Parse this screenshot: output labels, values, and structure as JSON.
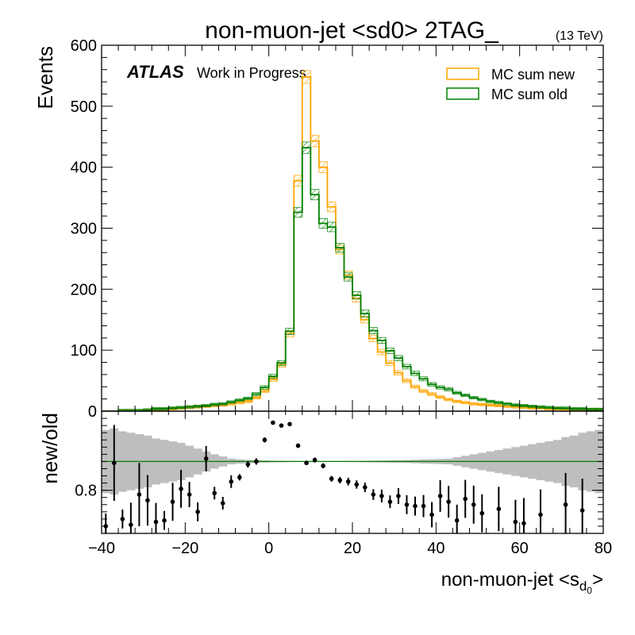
{
  "chart_data": [
    {
      "type": "histogram-step",
      "title": "non-muon-jet <sd0> 2TAG_",
      "energy_label": "(13 TeV)",
      "atlas_label": "ATLAS",
      "atlas_sublabel": "Work in Progress",
      "ylabel": "Events",
      "xlim": [
        -40,
        80
      ],
      "ylim": [
        0,
        600
      ],
      "y_ticks": [
        "0",
        "100",
        "200",
        "300",
        "400",
        "500",
        "600"
      ],
      "bin_width": 2,
      "legend_position": "top-right",
      "colors": {
        "new": "#FFA500",
        "old": "#008000"
      },
      "series": [
        {
          "name": "MC sum new",
          "bin_edges_start": -40,
          "values": [
            0,
            0,
            1,
            1,
            1,
            2,
            3,
            3,
            4,
            5,
            6,
            7,
            8,
            9,
            10,
            12,
            14,
            16,
            22,
            33,
            52,
            76,
            127,
            378,
            548,
            443,
            400,
            335,
            265,
            223,
            185,
            150,
            119,
            97,
            79,
            63,
            50,
            40,
            33,
            28,
            23,
            19,
            16,
            14,
            12,
            11,
            10,
            9,
            8,
            7,
            6,
            5,
            5,
            4,
            4,
            3,
            3,
            2,
            2,
            2
          ]
        },
        {
          "name": "MC sum old",
          "bin_edges_start": -40,
          "values": [
            0,
            0,
            1,
            1,
            1,
            2,
            4,
            4,
            5,
            6,
            7,
            8,
            9,
            11,
            12,
            15,
            18,
            21,
            28,
            39,
            57,
            79,
            131,
            326,
            432,
            355,
            308,
            302,
            268,
            220,
            190,
            160,
            132,
            116,
            99,
            87,
            73,
            62,
            53,
            44,
            39,
            36,
            30,
            26,
            22,
            19,
            16,
            14,
            12,
            10,
            9,
            8,
            7,
            6,
            5,
            5,
            4,
            4,
            3,
            3
          ]
        }
      ]
    },
    {
      "type": "ratio",
      "ylabel": "new/old",
      "xlabel": "non-muon-jet <s",
      "xlabel_subscript": "d",
      "xlabel_subsubscript": "0",
      "xlabel_suffix": ">",
      "xlim": [
        -40,
        80
      ],
      "x_ticks": [
        "-40",
        "-20",
        "0",
        "20",
        "40",
        "60",
        "80"
      ],
      "y_tick_labels": [
        "0.8"
      ],
      "reference_line": 1.0,
      "colors": {
        "points": "#000000",
        "band": "#BEBEBE",
        "reference": "#008000"
      },
      "band_halfwidth": [
        0.22,
        0.23,
        0.21,
        0.2,
        0.19,
        0.18,
        0.16,
        0.15,
        0.14,
        0.13,
        0.11,
        0.09,
        0.07,
        0.05,
        0.035,
        0.02,
        0.015,
        0.012,
        0.01,
        0.008,
        0.006,
        0.005,
        0.004,
        0.003,
        0.003,
        0.003,
        0.003,
        0.003,
        0.003,
        0.004,
        0.004,
        0.005,
        0.006,
        0.007,
        0.008,
        0.009,
        0.01,
        0.012,
        0.014,
        0.016,
        0.018,
        0.02,
        0.03,
        0.04,
        0.05,
        0.06,
        0.07,
        0.08,
        0.09,
        0.1,
        0.11,
        0.12,
        0.13,
        0.14,
        0.15,
        0.17,
        0.18,
        0.2,
        0.21,
        0.22
      ],
      "points": [
        {
          "x": -39,
          "y": 0.55,
          "err": 0.04
        },
        {
          "x": -37,
          "y": 0.99,
          "err": 0.12
        },
        {
          "x": -35,
          "y": 0.6,
          "err": 0.03
        },
        {
          "x": -33,
          "y": 0.56,
          "err": 0.07
        },
        {
          "x": -31,
          "y": 0.77,
          "err": 0.1
        },
        {
          "x": -29,
          "y": 0.73,
          "err": 0.08
        },
        {
          "x": -27,
          "y": 0.58,
          "err": 0.06
        },
        {
          "x": -25,
          "y": 0.59,
          "err": 0.03
        },
        {
          "x": -23,
          "y": 0.72,
          "err": 0.06
        },
        {
          "x": -21,
          "y": 0.81,
          "err": 0.06
        },
        {
          "x": -19,
          "y": 0.77,
          "err": 0.04
        },
        {
          "x": -17,
          "y": 0.65,
          "err": 0.03
        },
        {
          "x": -15,
          "y": 1.02,
          "err": 0.04
        },
        {
          "x": -13,
          "y": 0.78,
          "err": 0.02
        },
        {
          "x": -11,
          "y": 0.71,
          "err": 0.02
        },
        {
          "x": -9,
          "y": 0.86,
          "err": 0.02
        },
        {
          "x": -7,
          "y": 0.89,
          "err": 0.01
        },
        {
          "x": -5,
          "y": 0.98,
          "err": 0.01
        },
        {
          "x": -3,
          "y": 1.0,
          "err": 0.01
        },
        {
          "x": -1,
          "y": 1.15,
          "err": 0.008
        },
        {
          "x": 1,
          "y": 1.27,
          "err": 0.006
        },
        {
          "x": 3,
          "y": 1.25,
          "err": 0.006
        },
        {
          "x": 5,
          "y": 1.26,
          "err": 0.006
        },
        {
          "x": 7,
          "y": 1.11,
          "err": 0.007
        },
        {
          "x": 9,
          "y": 0.99,
          "err": 0.007
        },
        {
          "x": 11,
          "y": 1.01,
          "err": 0.008
        },
        {
          "x": 13,
          "y": 0.97,
          "err": 0.008
        },
        {
          "x": 15,
          "y": 0.88,
          "err": 0.009
        },
        {
          "x": 17,
          "y": 0.87,
          "err": 0.01
        },
        {
          "x": 19,
          "y": 0.86,
          "err": 0.012
        },
        {
          "x": 21,
          "y": 0.84,
          "err": 0.013
        },
        {
          "x": 23,
          "y": 0.82,
          "err": 0.015
        },
        {
          "x": 25,
          "y": 0.77,
          "err": 0.017
        },
        {
          "x": 27,
          "y": 0.76,
          "err": 0.02
        },
        {
          "x": 29,
          "y": 0.72,
          "err": 0.02
        },
        {
          "x": 31,
          "y": 0.76,
          "err": 0.025
        },
        {
          "x": 33,
          "y": 0.7,
          "err": 0.03
        },
        {
          "x": 35,
          "y": 0.69,
          "err": 0.03
        },
        {
          "x": 37,
          "y": 0.69,
          "err": 0.035
        },
        {
          "x": 39,
          "y": 0.63,
          "err": 0.04
        },
        {
          "x": 41,
          "y": 0.76,
          "err": 0.05
        },
        {
          "x": 43,
          "y": 0.72,
          "err": 0.05
        },
        {
          "x": 45,
          "y": 0.59,
          "err": 0.05
        },
        {
          "x": 47,
          "y": 0.74,
          "err": 0.06
        },
        {
          "x": 49,
          "y": 0.7,
          "err": 0.06
        },
        {
          "x": 51,
          "y": 0.64,
          "err": 0.06
        },
        {
          "x": 55,
          "y": 0.67,
          "err": 0.07
        },
        {
          "x": 59,
          "y": 0.58,
          "err": 0.07
        },
        {
          "x": 61,
          "y": 0.57,
          "err": 0.08
        },
        {
          "x": 65,
          "y": 0.63,
          "err": 0.08
        },
        {
          "x": 71,
          "y": 0.7,
          "err": 0.1
        },
        {
          "x": 75,
          "y": 0.66,
          "err": 0.1
        }
      ]
    }
  ]
}
